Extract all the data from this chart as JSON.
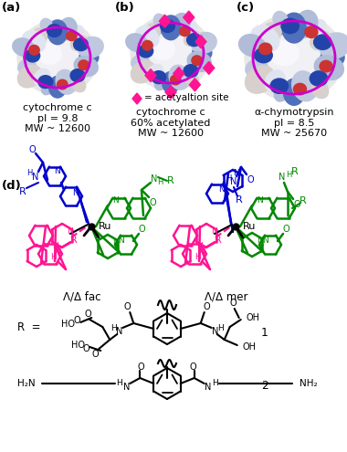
{
  "panel_a_label": "(a)",
  "panel_b_label": "(b)",
  "panel_c_label": "(c)",
  "panel_d_label": "(d)",
  "text_a": "cytochrome c\npI = 9.8\nMW ~ 12600",
  "text_b1": "= acetyaltion site",
  "text_b2": "cytochrome c\n60% acetylated\nMW ~ 12600",
  "text_c": "α-chymotrypsin\npI = 8.5\nMW ~ 25670",
  "fac_label": "Λ/Δ fac",
  "mer_label": "Λ/Δ mer",
  "compound1_label": "1",
  "compound2_label": "2",
  "bg_color": "#ffffff",
  "text_color": "#000000",
  "blue_color": "#0000cc",
  "green_color": "#008800",
  "pink_color": "#ff1493",
  "magenta_color": "#cc00cc"
}
